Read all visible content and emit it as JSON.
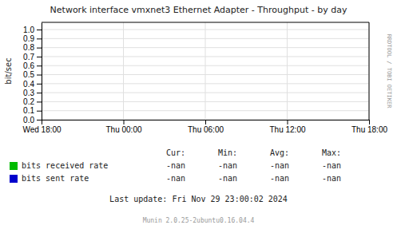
{
  "chart_data": {
    "type": "line",
    "title": "Network interface vmxnet3 Ethernet Adapter - Throughput - by day",
    "ylabel": "bit/sec",
    "categories": [
      "Wed 18:00",
      "Thu 00:00",
      "Thu 06:00",
      "Thu 12:00",
      "Thu 18:00"
    ],
    "series": [
      {
        "name": "bits received  rate",
        "color": "#00bb00",
        "values": [
          null,
          null,
          null,
          null,
          null
        ],
        "stats": [
          "-nan",
          "-nan",
          "-nan",
          "-nan"
        ]
      },
      {
        "name": "bits sent  rate",
        "color": "#0000cc",
        "values": [
          null,
          null,
          null,
          null,
          null
        ],
        "stats": [
          "-nan",
          "-nan",
          "-nan",
          "-nan"
        ]
      }
    ],
    "stats_header": [
      "Cur:",
      "Min:",
      "Avg:",
      "Max:"
    ],
    "ylim": [
      0.0,
      1.08
    ],
    "yticks": [
      {
        "value": 0.0,
        "label": "0.0"
      },
      0.1,
      0.2,
      0.3,
      0.4,
      0.5,
      0.6,
      0.7,
      0.8,
      0.9,
      {
        "value": 1.0,
        "label": "1.0"
      }
    ],
    "grid": true,
    "annotations": [
      "Last update:  Fri Nov 29 23:00:02 2024",
      "Munin 2.0.25-2ubuntu0.16.04.4",
      "RRDTOOL / TOBI OETIKER"
    ]
  }
}
